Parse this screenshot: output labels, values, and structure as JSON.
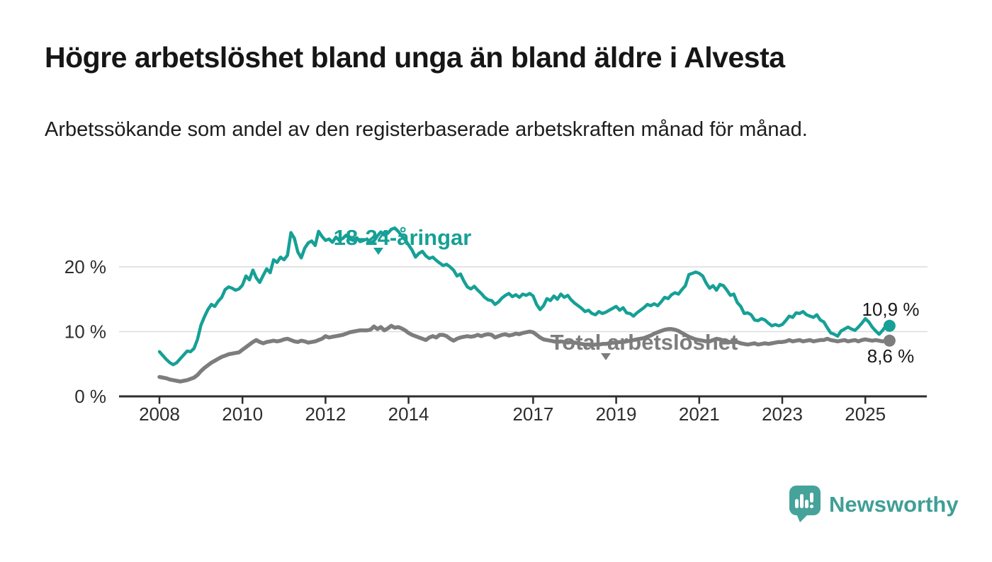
{
  "header": {
    "title": "Högre arbetslöshet bland unga än bland äldre i Alvesta",
    "subtitle": "Arbetssökande som andel av den registerbaserade arbetskraften månad för månad."
  },
  "footer": {
    "brand": "Newsworthy",
    "logo_icon": "speech-bubble-bar-chart-exclamation",
    "brand_color": "#3f9f96"
  },
  "colors": {
    "youth_line": "#16a096",
    "total_line": "#7d7d7d",
    "gridline": "#dcdcdc",
    "axis": "#2d2d2d",
    "text": "#161616"
  },
  "chart_data": {
    "type": "line",
    "unit": "%",
    "title": "Högre arbetslöshet bland unga än bland äldre i Alvesta",
    "xlabel": "",
    "ylabel": "",
    "x_start_year": 2008,
    "x_step_months": 1,
    "x_end": "2025-08",
    "ylim": [
      0,
      29
    ],
    "grid": "horizontal",
    "legend_position": "inline-labels",
    "x_ticks": [
      2008,
      2010,
      2012,
      2014,
      2017,
      2019,
      2021,
      2023,
      2025
    ],
    "y_ticks": [
      {
        "value": 0,
        "label": "0 %"
      },
      {
        "value": 10,
        "label": "10 %"
      },
      {
        "value": 20,
        "label": "20 %"
      }
    ],
    "series": [
      {
        "name": "18-24-åringar",
        "color": "#16a096",
        "end_label": "10,9 %",
        "end_value": 10.9,
        "values": [
          6.9,
          6.3,
          5.7,
          5.2,
          4.9,
          5.2,
          5.8,
          6.4,
          7.0,
          6.9,
          7.4,
          8.8,
          11.0,
          12.3,
          13.4,
          14.2,
          13.9,
          14.7,
          15.3,
          16.5,
          16.9,
          16.7,
          16.4,
          16.6,
          17.2,
          18.6,
          18.0,
          19.5,
          18.3,
          17.6,
          18.7,
          19.7,
          19.1,
          21.1,
          20.7,
          21.5,
          21.1,
          21.8,
          25.3,
          24.4,
          22.3,
          21.4,
          22.9,
          23.7,
          24.0,
          23.3,
          25.5,
          24.7,
          24.1,
          24.3,
          23.8,
          24.6,
          24.1,
          24.4,
          24.9,
          24.3,
          24.1,
          24.5,
          23.9,
          24.1,
          24.3,
          23.7,
          24.0,
          24.8,
          25.4,
          24.9,
          25.2,
          25.8,
          26.0,
          25.5,
          24.8,
          24.2,
          23.4,
          22.6,
          21.5,
          22.1,
          22.4,
          21.7,
          21.3,
          21.5,
          21.0,
          20.6,
          20.2,
          20.4,
          20.0,
          19.5,
          18.6,
          18.9,
          17.8,
          16.9,
          16.6,
          17.0,
          16.4,
          15.9,
          15.3,
          14.9,
          14.8,
          14.2,
          14.6,
          15.2,
          15.6,
          15.9,
          15.4,
          15.7,
          15.3,
          15.8,
          15.6,
          15.9,
          15.5,
          14.2,
          13.4,
          14.0,
          15.1,
          14.8,
          15.5,
          15.0,
          15.8,
          15.3,
          15.6,
          14.9,
          14.4,
          14.0,
          13.6,
          13.1,
          13.3,
          12.8,
          12.6,
          13.1,
          12.8,
          13.0,
          13.3,
          13.6,
          13.9,
          13.3,
          13.7,
          12.9,
          12.8,
          12.4,
          12.9,
          13.3,
          13.7,
          14.2,
          14.0,
          14.3,
          14.0,
          14.6,
          15.3,
          15.1,
          15.7,
          16.0,
          15.8,
          16.5,
          17.1,
          18.8,
          19.0,
          19.2,
          19.0,
          18.6,
          17.5,
          16.7,
          17.1,
          16.4,
          17.3,
          17.1,
          16.4,
          15.6,
          15.8,
          14.5,
          13.9,
          12.8,
          12.9,
          12.6,
          11.8,
          11.7,
          12.0,
          11.8,
          11.3,
          10.9,
          11.1,
          10.9,
          11.1,
          11.7,
          12.4,
          12.2,
          12.9,
          12.8,
          13.1,
          12.6,
          12.4,
          12.2,
          12.6,
          11.8,
          11.5,
          10.6,
          9.8,
          9.6,
          9.3,
          10.1,
          10.4,
          10.7,
          10.4,
          10.2,
          10.7,
          11.3,
          12.0,
          11.5,
          10.7,
          10.1,
          9.6,
          10.2,
          10.9,
          10.9
        ]
      },
      {
        "name": "Total arbetslöshet",
        "color": "#7d7d7d",
        "end_label": "8,6 %",
        "end_value": 8.6,
        "values": [
          3.0,
          2.9,
          2.8,
          2.6,
          2.5,
          2.4,
          2.3,
          2.4,
          2.5,
          2.7,
          2.9,
          3.3,
          3.9,
          4.4,
          4.8,
          5.2,
          5.5,
          5.8,
          6.1,
          6.3,
          6.5,
          6.6,
          6.7,
          6.8,
          7.2,
          7.6,
          8.0,
          8.4,
          8.7,
          8.4,
          8.2,
          8.4,
          8.5,
          8.6,
          8.5,
          8.6,
          8.8,
          8.9,
          8.7,
          8.5,
          8.4,
          8.6,
          8.5,
          8.3,
          8.4,
          8.5,
          8.7,
          8.9,
          9.3,
          9.1,
          9.2,
          9.3,
          9.4,
          9.5,
          9.7,
          9.9,
          10.0,
          10.1,
          10.2,
          10.2,
          10.2,
          10.3,
          10.8,
          10.4,
          10.7,
          10.2,
          10.5,
          10.9,
          10.6,
          10.7,
          10.5,
          10.2,
          9.8,
          9.5,
          9.3,
          9.1,
          8.9,
          8.7,
          9.1,
          9.3,
          9.1,
          9.5,
          9.5,
          9.3,
          8.9,
          8.6,
          8.9,
          9.1,
          9.2,
          9.3,
          9.2,
          9.3,
          9.5,
          9.3,
          9.5,
          9.6,
          9.5,
          9.1,
          9.3,
          9.5,
          9.6,
          9.4,
          9.5,
          9.7,
          9.6,
          9.8,
          9.9,
          10.0,
          9.9,
          9.5,
          9.1,
          8.8,
          8.7,
          8.6,
          8.5,
          8.4,
          8.5,
          8.4,
          8.3,
          8.4,
          8.3,
          8.2,
          8.1,
          8.0,
          8.0,
          7.9,
          8.0,
          8.0,
          8.1,
          8.1,
          8.2,
          8.3,
          8.3,
          8.4,
          8.4,
          8.5,
          8.6,
          8.7,
          8.8,
          8.9,
          9.0,
          9.2,
          9.4,
          9.7,
          9.9,
          10.1,
          10.3,
          10.4,
          10.4,
          10.3,
          10.1,
          9.8,
          9.5,
          9.2,
          9.0,
          8.8,
          8.7,
          8.6,
          8.5,
          8.5,
          8.7,
          8.9,
          8.8,
          8.6,
          8.5,
          8.4,
          8.4,
          8.4,
          8.2,
          8.1,
          8.0,
          8.1,
          8.2,
          8.0,
          8.1,
          8.2,
          8.1,
          8.2,
          8.3,
          8.4,
          8.4,
          8.5,
          8.7,
          8.5,
          8.6,
          8.7,
          8.5,
          8.6,
          8.7,
          8.5,
          8.6,
          8.7,
          8.7,
          8.9,
          8.7,
          8.6,
          8.5,
          8.6,
          8.7,
          8.5,
          8.6,
          8.7,
          8.5,
          8.7,
          8.8,
          8.7,
          8.6,
          8.7,
          8.6,
          8.5,
          8.6,
          8.6
        ]
      }
    ]
  }
}
